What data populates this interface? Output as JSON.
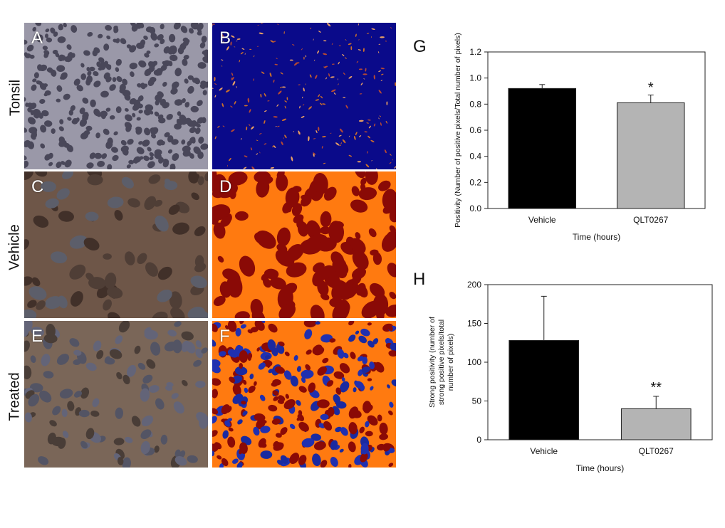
{
  "row_labels": [
    "Tonsil",
    "Vehicle",
    "Treated"
  ],
  "panel_letters": [
    "A",
    "B",
    "C",
    "D",
    "E",
    "F"
  ],
  "chart_data": [
    {
      "panel_label": "G",
      "type": "bar",
      "categories": [
        "Vehicle",
        "QLT0267"
      ],
      "values": [
        0.92,
        0.81
      ],
      "errors": [
        0.03,
        0.06
      ],
      "bar_colors": [
        "#000000",
        "#b4b4b4"
      ],
      "significance": [
        "",
        "*"
      ],
      "ylim": [
        0,
        1.2
      ],
      "yticks": [
        "0.0",
        "0.2",
        "0.4",
        "0.6",
        "0.8",
        "1.0",
        "1.2"
      ],
      "xlabel": "Time (hours)",
      "ylabel": "Positivity (Number of positive pixels/Total number of pixels)"
    },
    {
      "panel_label": "H",
      "type": "bar",
      "categories": [
        "Vehicle",
        "QLT0267"
      ],
      "values": [
        128,
        40
      ],
      "errors": [
        57,
        16
      ],
      "bar_colors": [
        "#000000",
        "#b4b4b4"
      ],
      "significance": [
        "",
        "**"
      ],
      "ylim": [
        0,
        200
      ],
      "yticks": [
        "0",
        "50",
        "100",
        "150",
        "200"
      ],
      "xlabel": "Time (hours)",
      "ylabel_lines": [
        "Strong positivity (number of",
        "strong positive pixels/total",
        "number of pixels)"
      ]
    }
  ]
}
